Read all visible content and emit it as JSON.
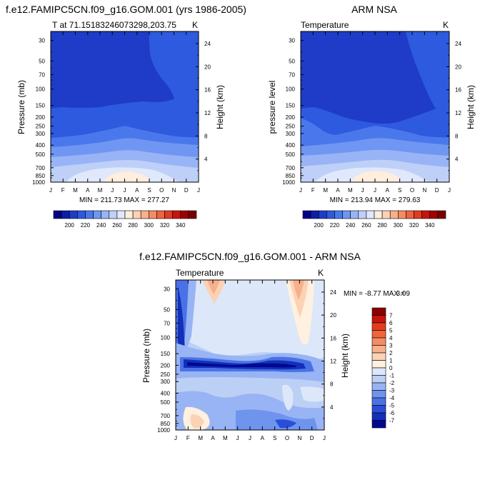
{
  "chart_data": [
    {
      "type": "heatmap",
      "title": "f.e12.FAMIPC5CN.f09_g16.GOM.001 (yrs 1986-2005)",
      "subtitle_left": "T at 71.15183246073298,203.75",
      "subtitle_right": "K",
      "ylabel": "Pressure (mb)",
      "y2label": "Height (km)",
      "x": [
        "J",
        "F",
        "M",
        "A",
        "M",
        "J",
        "J",
        "A",
        "S",
        "O",
        "N",
        "D",
        "J"
      ],
      "y_ticks": [
        "30",
        "50",
        "70",
        "100",
        "150",
        "200",
        "250",
        "300",
        "400",
        "500",
        "700",
        "850",
        "1000"
      ],
      "y2_ticks": [
        "24",
        "20",
        "16",
        "12",
        "8",
        "4"
      ],
      "stats": "MIN = 211.73 MAX = 277.27",
      "levels": [
        "200",
        "220",
        "240",
        "260",
        "280",
        "300",
        "320",
        "340"
      ],
      "colormap": [
        "#00008c",
        "#0c1ea8",
        "#1e3cc8",
        "#2d5ade",
        "#4a78ec",
        "#6f96f2",
        "#98b4f6",
        "#bfd0f8",
        "#e0e8fb",
        "#ffeedd",
        "#fcd2b4",
        "#f8b08a",
        "#f48c64",
        "#ee6440",
        "#e03c22",
        "#c8140a",
        "#a00000",
        "#780000"
      ]
    },
    {
      "type": "heatmap",
      "title": "ARM NSA",
      "subtitle_left": "Temperature",
      "subtitle_right": "K",
      "ylabel": "pressure level",
      "y2label": "Height (km)",
      "x": [
        "J",
        "F",
        "M",
        "A",
        "M",
        "J",
        "J",
        "A",
        "S",
        "O",
        "N",
        "D",
        "J"
      ],
      "y_ticks": [
        "30",
        "50",
        "70",
        "100",
        "150",
        "200",
        "250",
        "300",
        "400",
        "500",
        "700",
        "850",
        "1000"
      ],
      "y2_ticks": [
        "24",
        "20",
        "16",
        "12",
        "8",
        "4"
      ],
      "stats": "MIN = 213.94 MAX = 279.63",
      "levels": [
        "200",
        "220",
        "240",
        "260",
        "280",
        "300",
        "320",
        "340"
      ]
    },
    {
      "type": "heatmap",
      "title": "f.e12.FAMIPC5CN.f09_g16.GOM.001 - ARM NSA",
      "subtitle_left": "Temperature",
      "subtitle_right": "K",
      "ylabel": "Pressure (mb)",
      "y2label": "Height (km)",
      "x": [
        "J",
        "F",
        "M",
        "A",
        "M",
        "J",
        "J",
        "A",
        "S",
        "O",
        "N",
        "D",
        "J"
      ],
      "y_ticks": [
        "30",
        "50",
        "70",
        "100",
        "150",
        "200",
        "250",
        "300",
        "400",
        "500",
        "700",
        "850",
        "1000"
      ],
      "y2_ticks": [
        "24",
        "20",
        "16",
        "12",
        "8",
        "4"
      ],
      "stats_left": "MIN =  -8.77 MAX =",
      "stats_right": "3.09",
      "levels": [
        "7",
        "6",
        "5",
        "4",
        "3",
        "2",
        "1",
        "0",
        "-1",
        "-2",
        "-3",
        "-4",
        "-5",
        "-6",
        "-7"
      ],
      "colormap": [
        "#8c0000",
        "#c8140a",
        "#e63c1e",
        "#f0643c",
        "#f48c64",
        "#f8b08c",
        "#fcd2b4",
        "#fff0e0",
        "#dce8fa",
        "#bcd0f6",
        "#98b4f4",
        "#6e94ee",
        "#4a72e6",
        "#2a4ed8",
        "#1230b8",
        "#000890"
      ]
    }
  ]
}
